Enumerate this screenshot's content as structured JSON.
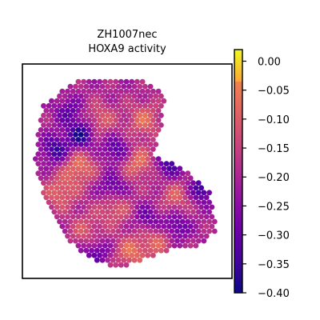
{
  "chart_data": {
    "type": "heatmap",
    "title": "ZH1007nec",
    "subtitle": "HOXA9 activity",
    "xlabel": "",
    "ylabel": "",
    "grid": false,
    "colormap": "plasma",
    "colorbar": {
      "vmin": -0.4,
      "vmax": 0.02,
      "ticks": [
        0.0,
        -0.05,
        -0.1,
        -0.15,
        -0.2,
        -0.25,
        -0.3,
        -0.35,
        -0.4
      ],
      "tick_labels": [
        "0.00",
        "−0.05",
        "−0.10",
        "−0.15",
        "−0.20",
        "−0.25",
        "−0.30",
        "−0.35",
        "−0.40"
      ]
    },
    "blobs_description": "spatial spot values",
    "hot_spots": [
      {
        "x": 0.18,
        "y": 0.6,
        "value": -0.08
      },
      {
        "x": 0.27,
        "y": 0.48,
        "value": -0.06
      },
      {
        "x": 0.55,
        "y": 0.46,
        "value": -0.07
      },
      {
        "x": 0.58,
        "y": 0.26,
        "value": -0.08
      },
      {
        "x": 0.37,
        "y": 0.26,
        "value": -0.1
      },
      {
        "x": 0.44,
        "y": 0.67,
        "value": -0.09
      },
      {
        "x": 0.3,
        "y": 0.78,
        "value": -0.11
      },
      {
        "x": 0.73,
        "y": 0.62,
        "value": -0.1
      },
      {
        "x": 0.52,
        "y": 0.88,
        "value": -0.07
      },
      {
        "x": 0.65,
        "y": 0.82,
        "value": -0.09
      }
    ],
    "cold_spots": [
      {
        "x": 0.28,
        "y": 0.33,
        "value": -0.39
      },
      {
        "x": 0.16,
        "y": 0.4,
        "value": -0.36
      },
      {
        "x": 0.45,
        "y": 0.4,
        "value": -0.33
      },
      {
        "x": 0.43,
        "y": 0.58,
        "value": -0.32
      },
      {
        "x": 0.7,
        "y": 0.47,
        "value": -0.34
      },
      {
        "x": 0.86,
        "y": 0.58,
        "value": -0.36
      },
      {
        "x": 0.73,
        "y": 0.76,
        "value": -0.33
      },
      {
        "x": 0.22,
        "y": 0.22,
        "value": -0.3
      },
      {
        "x": 0.6,
        "y": 0.72,
        "value": -0.3
      },
      {
        "x": 0.35,
        "y": 0.88,
        "value": -0.31
      }
    ]
  }
}
